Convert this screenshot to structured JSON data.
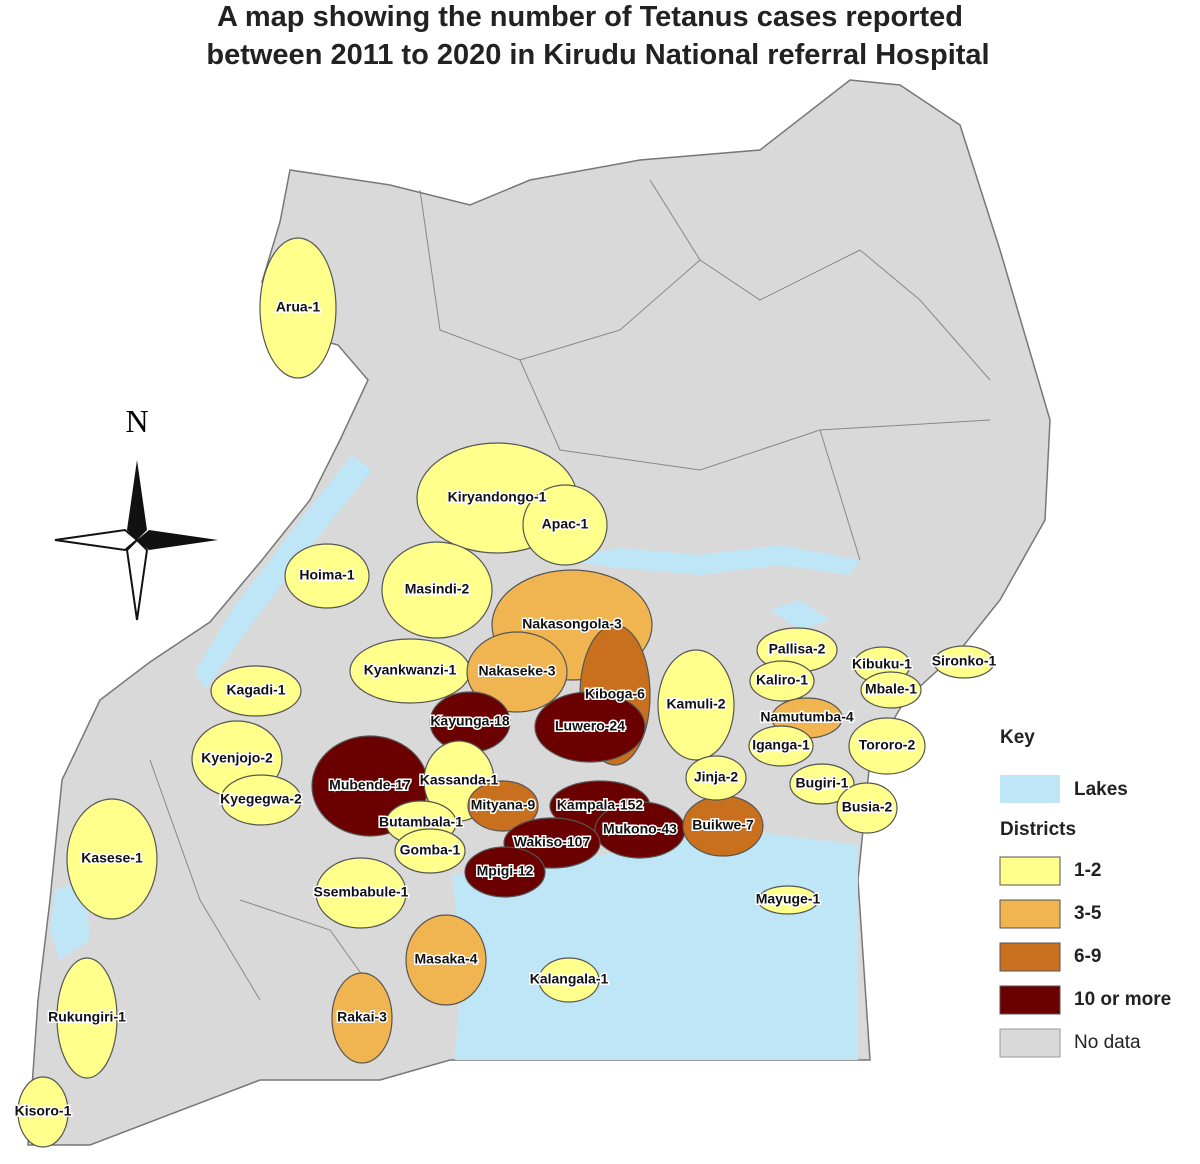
{
  "title": [
    "A map showing the number of Tetanus cases reported",
    "between 2011 to 2020 in Kirudu National referral Hospital"
  ],
  "compass": "N",
  "lakes_color": "#bfe6f7",
  "no_data_color": "#d9d9d9",
  "districts": [
    {
      "label": "Arua-1",
      "color": "#ffff8c"
    },
    {
      "label": "Kiryandongo-1",
      "color": "#ffff8c"
    },
    {
      "label": "Apac-1",
      "color": "#ffff8c"
    },
    {
      "label": "Hoima-1",
      "color": "#ffff8c"
    },
    {
      "label": "Masindi-2",
      "color": "#ffff8c"
    },
    {
      "label": "Nakasongola-3",
      "color": "#f0b450"
    },
    {
      "label": "Kyankwanzi-1",
      "color": "#ffff8c"
    },
    {
      "label": "Nakaseke-3",
      "color": "#f0b450"
    },
    {
      "label": "Kagadi-1",
      "color": "#ffff8c"
    },
    {
      "label": "Kiboga-6",
      "color": "#c8701e"
    },
    {
      "label": "Kayunga-18",
      "color": "#6b0000"
    },
    {
      "label": "Luwero-24",
      "color": "#6b0000"
    },
    {
      "label": "Kamuli-2",
      "color": "#ffff8c"
    },
    {
      "label": "Kyenjojo-2",
      "color": "#ffff8c"
    },
    {
      "label": "Mubende-17",
      "color": "#6b0000"
    },
    {
      "label": "Kassanda-1",
      "color": "#ffff8c"
    },
    {
      "label": "Kyegegwa-2",
      "color": "#ffff8c"
    },
    {
      "label": "Mityana-9",
      "color": "#c8701e"
    },
    {
      "label": "Kampala-152",
      "color": "#6b0000"
    },
    {
      "label": "Butambala-1",
      "color": "#ffff8c"
    },
    {
      "label": "Mukono-43",
      "color": "#6b0000"
    },
    {
      "label": "Buikwe-7",
      "color": "#c8701e"
    },
    {
      "label": "Wakiso-107",
      "color": "#6b0000"
    },
    {
      "label": "Gomba-1",
      "color": "#ffff8c"
    },
    {
      "label": "Mpigi-12",
      "color": "#6b0000"
    },
    {
      "label": "Kasese-1",
      "color": "#ffff8c"
    },
    {
      "label": "Ssembabule-1",
      "color": "#ffff8c"
    },
    {
      "label": "Mayuge-1",
      "color": "#ffff8c"
    },
    {
      "label": "Masaka-4",
      "color": "#f0b450"
    },
    {
      "label": "Kalangala-1",
      "color": "#ffff8c"
    },
    {
      "label": "Rakai-3",
      "color": "#f0b450"
    },
    {
      "label": "Rukungiri-1",
      "color": "#ffff8c"
    },
    {
      "label": "Kisoro-1",
      "color": "#ffff8c"
    },
    {
      "label": "Pallisa-2",
      "color": "#ffff8c"
    },
    {
      "label": "Kibuku-1",
      "color": "#ffff8c"
    },
    {
      "label": "Sironko-1",
      "color": "#ffff8c"
    },
    {
      "label": "Kaliro-1",
      "color": "#ffff8c"
    },
    {
      "label": "Mbale-1",
      "color": "#ffff8c"
    },
    {
      "label": "Namutumba-4",
      "color": "#f0b450"
    },
    {
      "label": "Iganga-1",
      "color": "#ffff8c"
    },
    {
      "label": "Tororo-2",
      "color": "#ffff8c"
    },
    {
      "label": "Jinja-2",
      "color": "#ffff8c"
    },
    {
      "label": "Bugiri-1",
      "color": "#ffff8c"
    },
    {
      "label": "Busia-2",
      "color": "#ffff8c"
    }
  ],
  "legend": {
    "title": "Key",
    "lakes": "Lakes",
    "heading": "Districts",
    "classes": [
      {
        "label": "1-2",
        "color": "#ffff8c"
      },
      {
        "label": "3-5",
        "color": "#f0b450"
      },
      {
        "label": "6-9",
        "color": "#c8701e"
      },
      {
        "label": "10 or more",
        "color": "#6b0000"
      }
    ],
    "no_data": "No data"
  }
}
